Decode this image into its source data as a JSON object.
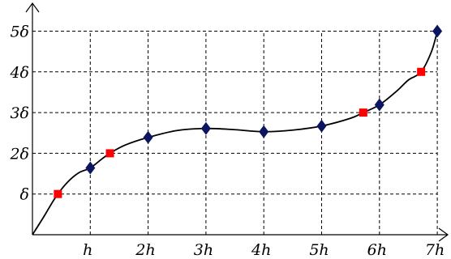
{
  "chart_data": {
    "type": "scatter",
    "title": "",
    "xlabel": "",
    "ylabel": "",
    "x_ticks": [
      {
        "value": 1,
        "label": "h"
      },
      {
        "value": 2,
        "label": "2h"
      },
      {
        "value": 3,
        "label": "3h"
      },
      {
        "value": 4,
        "label": "4h"
      },
      {
        "value": 5,
        "label": "5h"
      },
      {
        "value": 6,
        "label": "6h"
      },
      {
        "value": 7,
        "label": "7h"
      }
    ],
    "y_ticks": [
      {
        "value": 1,
        "label": "δ"
      },
      {
        "value": 2,
        "label": "2δ"
      },
      {
        "value": 3,
        "label": "3δ"
      },
      {
        "value": 4,
        "label": "4δ"
      },
      {
        "value": 5,
        "label": "5δ"
      }
    ],
    "xlim": [
      0,
      7.2
    ],
    "ylim": [
      0,
      5.5
    ],
    "grid": true,
    "series": [
      {
        "kind": "curve",
        "color": "#000000",
        "points": [
          [
            0,
            0
          ],
          [
            0.2,
            0.45
          ],
          [
            0.4,
            0.92
          ],
          [
            0.6,
            1.28
          ],
          [
            0.8,
            1.52
          ],
          [
            1.0,
            1.64
          ],
          [
            1.2,
            1.86
          ],
          [
            1.34,
            2.0
          ],
          [
            1.6,
            2.2
          ],
          [
            2.0,
            2.39
          ],
          [
            2.5,
            2.56
          ],
          [
            3.0,
            2.61
          ],
          [
            3.5,
            2.58
          ],
          [
            4.0,
            2.53
          ],
          [
            4.5,
            2.57
          ],
          [
            5.0,
            2.67
          ],
          [
            5.5,
            2.86
          ],
          [
            5.72,
            3.0
          ],
          [
            6.0,
            3.19
          ],
          [
            6.3,
            3.53
          ],
          [
            6.5,
            3.8
          ],
          [
            6.72,
            4.0
          ],
          [
            6.9,
            4.5
          ],
          [
            7.0,
            5.0
          ]
        ]
      },
      {
        "kind": "markers",
        "marker": "diamond",
        "color": "#0b1560",
        "points": [
          [
            1,
            1.64
          ],
          [
            2,
            2.39
          ],
          [
            3,
            2.61
          ],
          [
            4,
            2.53
          ],
          [
            5,
            2.67
          ],
          [
            6,
            3.19
          ],
          [
            7,
            5.0
          ]
        ]
      },
      {
        "kind": "markers",
        "marker": "square",
        "color": "#ff0000",
        "points": [
          [
            0.44,
            1.0
          ],
          [
            1.34,
            2.0
          ],
          [
            5.72,
            3.0
          ],
          [
            6.72,
            4.0
          ]
        ]
      }
    ]
  }
}
